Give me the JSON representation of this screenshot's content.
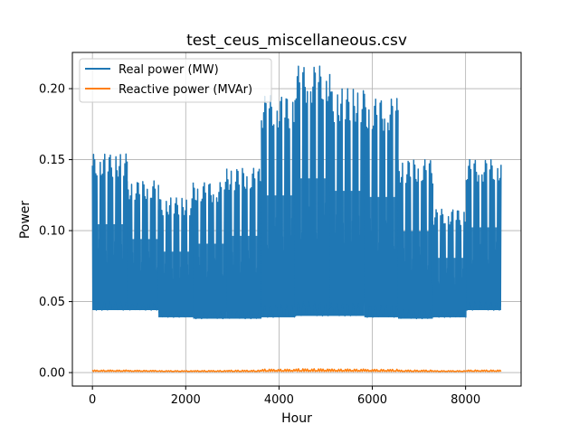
{
  "chart_data": {
    "type": "line",
    "title": "test_ceus_miscellaneous.csv",
    "xlabel": "Hour",
    "ylabel": "Power",
    "xlim": [
      -430,
      9190
    ],
    "ylim": [
      -0.0095,
      0.2255
    ],
    "xticks": [
      0,
      2000,
      4000,
      6000,
      8000
    ],
    "xtick_labels": [
      "0",
      "2000",
      "4000",
      "6000",
      "8000"
    ],
    "yticks": [
      0.0,
      0.05,
      0.1,
      0.15,
      0.2
    ],
    "ytick_labels": [
      "0.00",
      "0.05",
      "0.10",
      "0.15",
      "0.20"
    ],
    "grid": true,
    "legend_position": "top-left",
    "series": [
      {
        "name": "Real power (MW)",
        "color": "#1f77b4",
        "monthly_blocks": [
          {
            "start": 0,
            "end": 744,
            "min": 0.044,
            "max": 0.154
          },
          {
            "start": 744,
            "end": 1416,
            "min": 0.044,
            "max": 0.135
          },
          {
            "start": 1416,
            "end": 2160,
            "min": 0.039,
            "max": 0.123
          },
          {
            "start": 2160,
            "end": 2880,
            "min": 0.038,
            "max": 0.134
          },
          {
            "start": 2880,
            "end": 3624,
            "min": 0.038,
            "max": 0.144
          },
          {
            "start": 3624,
            "end": 4344,
            "min": 0.039,
            "max": 0.195
          },
          {
            "start": 4344,
            "end": 5088,
            "min": 0.04,
            "max": 0.216
          },
          {
            "start": 5088,
            "end": 5832,
            "min": 0.04,
            "max": 0.2
          },
          {
            "start": 5832,
            "end": 6552,
            "min": 0.039,
            "max": 0.193
          },
          {
            "start": 6552,
            "end": 7296,
            "min": 0.038,
            "max": 0.15
          },
          {
            "start": 7296,
            "end": 8016,
            "min": 0.039,
            "max": 0.115
          },
          {
            "start": 8016,
            "end": 8760,
            "min": 0.044,
            "max": 0.15
          }
        ]
      },
      {
        "name": "Reactive power (MVAr)",
        "color": "#ff7f0e",
        "monthly_blocks": [
          {
            "start": 0,
            "end": 744,
            "min": 0.0008,
            "max": 0.0018
          },
          {
            "start": 744,
            "end": 1416,
            "min": 0.0008,
            "max": 0.0016
          },
          {
            "start": 1416,
            "end": 2160,
            "min": 0.0007,
            "max": 0.0014
          },
          {
            "start": 2160,
            "end": 2880,
            "min": 0.0007,
            "max": 0.0015
          },
          {
            "start": 2880,
            "end": 3624,
            "min": 0.0007,
            "max": 0.0017
          },
          {
            "start": 3624,
            "end": 4344,
            "min": 0.0008,
            "max": 0.0024
          },
          {
            "start": 4344,
            "end": 5088,
            "min": 0.0008,
            "max": 0.0027
          },
          {
            "start": 5088,
            "end": 5832,
            "min": 0.0008,
            "max": 0.0025
          },
          {
            "start": 5832,
            "end": 6552,
            "min": 0.0008,
            "max": 0.0023
          },
          {
            "start": 6552,
            "end": 7296,
            "min": 0.0007,
            "max": 0.0018
          },
          {
            "start": 7296,
            "end": 8016,
            "min": 0.0007,
            "max": 0.0014
          },
          {
            "start": 8016,
            "end": 8760,
            "min": 0.0008,
            "max": 0.0018
          }
        ]
      }
    ]
  }
}
